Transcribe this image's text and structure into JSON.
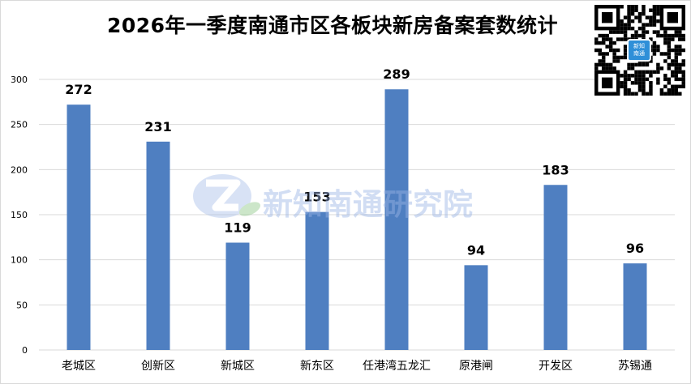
{
  "title": "2026年一季度南通市区各板块新房备案套数统计",
  "watermark_text": "新知南通研究院",
  "qr_badge_text": "新知\n南通",
  "colors": {
    "bar": "#4f7fc1",
    "grid": "#d9d9d9",
    "axis_text": "#000000",
    "watermark": "#9bb4e6"
  },
  "chart_data": {
    "type": "bar",
    "title": "2026年一季度南通市区各板块新房备案套数统计",
    "xlabel": "",
    "ylabel": "",
    "categories": [
      "老城区",
      "创新区",
      "新城区",
      "新东区",
      "任港湾五龙汇",
      "原港闸",
      "开发区",
      "苏锡通"
    ],
    "values": [
      272,
      231,
      119,
      153,
      289,
      94,
      183,
      96
    ],
    "ylim": [
      0,
      300
    ],
    "yticks": [
      0,
      50,
      100,
      150,
      200,
      250,
      300
    ],
    "grid": true,
    "data_labels": true,
    "legend": "none"
  }
}
